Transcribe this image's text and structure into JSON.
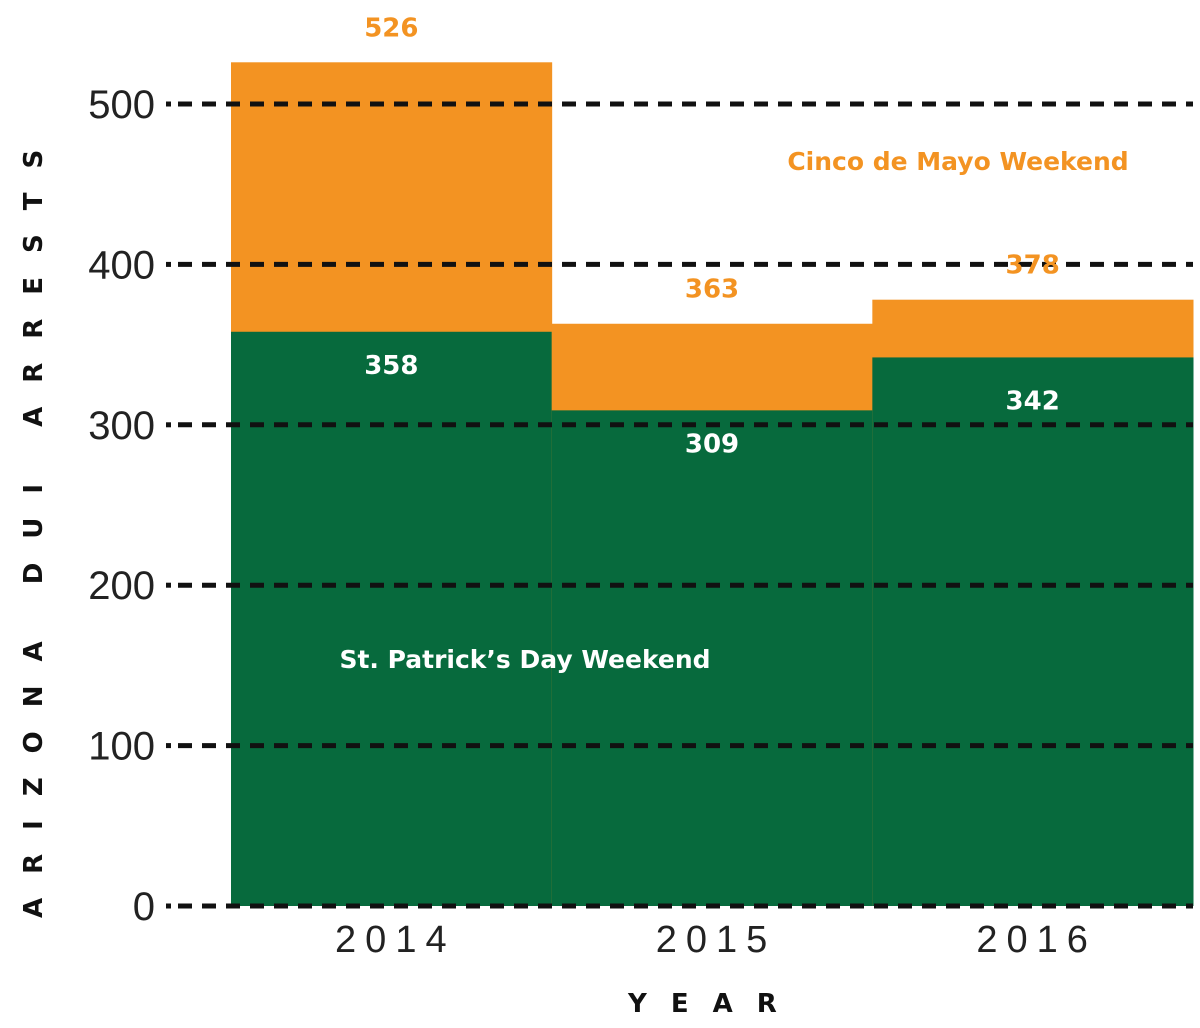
{
  "chart_data": {
    "type": "bar",
    "title": "",
    "xlabel": "YEAR",
    "ylabel": "ARIZONA DUI ARRESTS",
    "categories": [
      "2014",
      "2015",
      "2016"
    ],
    "ylim": [
      0,
      500
    ],
    "yticks": [
      "0",
      "100",
      "200",
      "300",
      "400",
      "500"
    ],
    "grid": true,
    "series": [
      {
        "name": "Cinco de Mayo Weekend",
        "color": "#f39322",
        "values": [
          526,
          363,
          378
        ],
        "labels": [
          "526",
          "363",
          "378"
        ]
      },
      {
        "name": "St. Patrick’s Day Weekend",
        "color": "#076a3d",
        "values": [
          358,
          309,
          342
        ],
        "labels": [
          "358",
          "309",
          "342"
        ]
      }
    ]
  }
}
